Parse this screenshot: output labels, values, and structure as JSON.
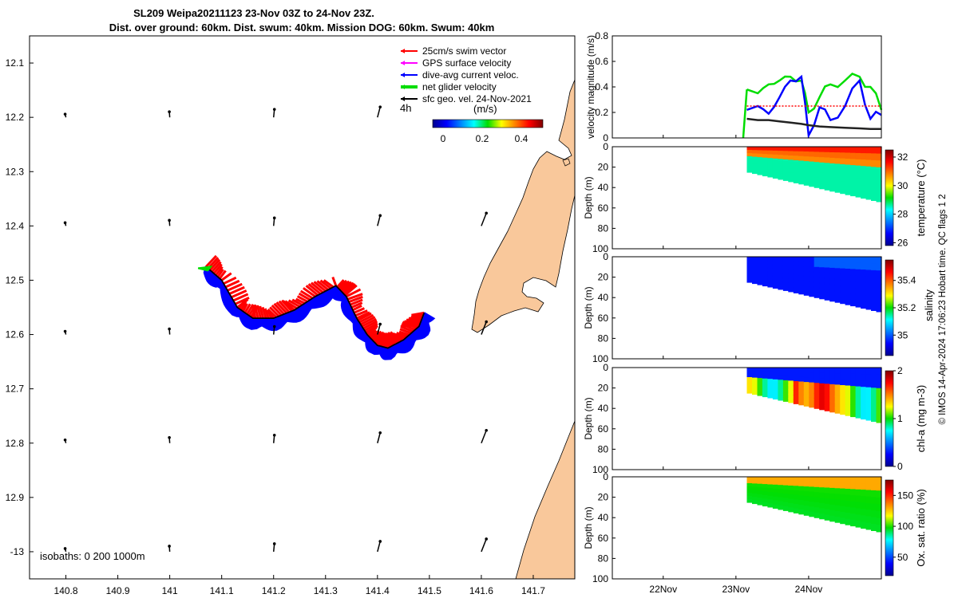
{
  "title": {
    "line1": "SL209 Weipa20211123 23-Nov 03Z to 24-Nov 23Z.",
    "line2": "Dist. over ground: 60km. Dist. swum: 40km. Mission DOG: 60km. Swum: 40km"
  },
  "map": {
    "x_ticks": [
      "140.8",
      "140.9",
      "141",
      "141.1",
      "141.2",
      "141.3",
      "141.4",
      "141.5",
      "141.6",
      "141.7"
    ],
    "y_ticks": [
      "12.1",
      "12.2",
      "12.3",
      "12.4",
      "12.5",
      "12.6",
      "12.7",
      "12.8",
      "12.9",
      "-13"
    ],
    "legend": [
      {
        "label": "25cm/s swim vector",
        "color": "#ff0000"
      },
      {
        "label": "GPS surface velocity",
        "color": "#ff00ff"
      },
      {
        "label": "dive-avg current veloc.",
        "color": "#0000ff"
      },
      {
        "label": "net glider velocity",
        "color": "#00dd00"
      },
      {
        "label": "sfc geo. vel. 24-Nov-2021",
        "color": "#000000"
      }
    ],
    "colorbar": {
      "label": "(m/s)",
      "interval": "4h",
      "ticks": [
        "0",
        "0.2",
        "0.4"
      ]
    },
    "isobaths": "isobaths: 0   200  1000m",
    "land_color": "#f9c89b"
  },
  "timeseries": {
    "x_ticks": [
      "22Nov",
      "23Nov",
      "24Nov"
    ],
    "copyright": "© IMOS 14-Apr-2024 17:06:23 Hobart time. QC flags 1  2",
    "panels": [
      {
        "ylabel": "velocity magnitude (m/s)",
        "yticks": [
          "0",
          "0.2",
          "0.4",
          "0.6",
          "0.8"
        ]
      },
      {
        "ylabel": "Depth (m)",
        "yticks": [
          "0",
          "20",
          "40",
          "60",
          "80",
          "100"
        ],
        "cbar_label": "temperature (°C)",
        "cbar_ticks": [
          "26",
          "28",
          "30",
          "32"
        ]
      },
      {
        "ylabel": "Depth (m)",
        "yticks": [
          "0",
          "20",
          "40",
          "60",
          "80",
          "100"
        ],
        "cbar_label_1": "salinity",
        "cbar_ticks": [
          "35",
          "35.2",
          "35.4"
        ]
      },
      {
        "ylabel": "Depth (m)",
        "yticks": [
          "0",
          "20",
          "40",
          "60",
          "80",
          "100"
        ],
        "cbar_label": "chl-a (mg m-3)",
        "cbar_ticks": [
          "0",
          "1",
          "2"
        ]
      },
      {
        "ylabel": "Depth (m)",
        "yticks": [
          "0",
          "20",
          "40",
          "60",
          "80",
          "100"
        ],
        "cbar_label": "Ox. sat. ratio (%)",
        "cbar_ticks": [
          "50",
          "100",
          "150"
        ]
      }
    ]
  },
  "chart_data": [
    {
      "type": "line",
      "title": "SL209 Weipa20211123 23-Nov 03Z to 24-Nov 23Z.",
      "subtitle": "Dist. over ground: 60km. Dist. swum: 40km. Mission DOG: 60km. Swum: 40km",
      "xlim": [
        140.73,
        141.78
      ],
      "ylim": [
        12.05,
        13.05
      ],
      "y_axis_inverted": true,
      "series": [
        {
          "name": "net glider velocity",
          "x": [
            141.07,
            141.1,
            141.13,
            141.16,
            141.2,
            141.24,
            141.28,
            141.32,
            141.34,
            141.36,
            141.38,
            141.4,
            141.42,
            141.45,
            141.48,
            141.49
          ],
          "y": [
            12.475,
            12.5,
            12.55,
            12.57,
            12.57,
            12.555,
            12.53,
            12.51,
            12.53,
            12.57,
            12.6,
            12.62,
            12.625,
            12.61,
            12.585,
            12.56
          ]
        }
      ],
      "sfc_vectors_rows_lat": [
        12.2,
        12.4,
        12.6,
        12.8,
        13.0
      ],
      "sfc_vectors_cols_lon": [
        140.8,
        141.0,
        141.2,
        141.4,
        141.6
      ]
    },
    {
      "type": "line",
      "ylabel": "velocity magnitude (m/s)",
      "ylim": [
        0,
        0.8
      ],
      "x_ticks": [
        "22Nov",
        "23Nov",
        "24Nov"
      ],
      "x_days": [
        23.15,
        23.3,
        23.45,
        23.6,
        23.75,
        23.9,
        24.0,
        24.15,
        24.3,
        24.5,
        24.7,
        24.85,
        25.0
      ],
      "series": [
        {
          "name": "net glider velocity",
          "color": "#00dd00",
          "values": [
            0.38,
            0.35,
            0.42,
            0.45,
            0.48,
            0.45,
            0.2,
            0.32,
            0.42,
            0.45,
            0.48,
            0.4,
            0.22
          ]
        },
        {
          "name": "dive-avg current veloc.",
          "color": "#0000ff",
          "values": [
            0.22,
            0.25,
            0.19,
            0.32,
            0.45,
            0.48,
            0.02,
            0.24,
            0.14,
            0.25,
            0.45,
            0.15,
            0.18
          ]
        },
        {
          "name": "25cm/s swim vector",
          "color": "#ff0000",
          "values": [
            0.25,
            0.25,
            0.25,
            0.25,
            0.25,
            0.25,
            0.25,
            0.25,
            0.25,
            0.25,
            0.25,
            0.25,
            0.25
          ]
        },
        {
          "name": "sfc geo. vel. 24-Nov-2021",
          "color": "#222222",
          "values": [
            0.15,
            0.14,
            0.14,
            0.13,
            0.12,
            0.11,
            0.1,
            0.09,
            0.085,
            0.08,
            0.075,
            0.07,
            0.07
          ]
        }
      ]
    },
    {
      "type": "heatmap",
      "ylabel": "Depth (m)",
      "variable": "temperature (°C)",
      "clim": [
        25.8,
        32.5
      ],
      "surface": 31,
      "deep": 28.5
    },
    {
      "type": "heatmap",
      "ylabel": "Depth (m)",
      "variable": "salinity",
      "clim": [
        34.85,
        35.55
      ],
      "surface": 34.95,
      "deep": 34.95
    },
    {
      "type": "heatmap",
      "ylabel": "Depth (m)",
      "variable": "chl-a (mg m-3)",
      "clim": [
        0,
        2
      ],
      "surface": 0.3,
      "deep": 1.6
    },
    {
      "type": "heatmap",
      "ylabel": "Depth (m)",
      "variable": "Ox. sat. ratio (%)",
      "clim": [
        20,
        175
      ],
      "surface": 130,
      "deep": 95
    }
  ]
}
